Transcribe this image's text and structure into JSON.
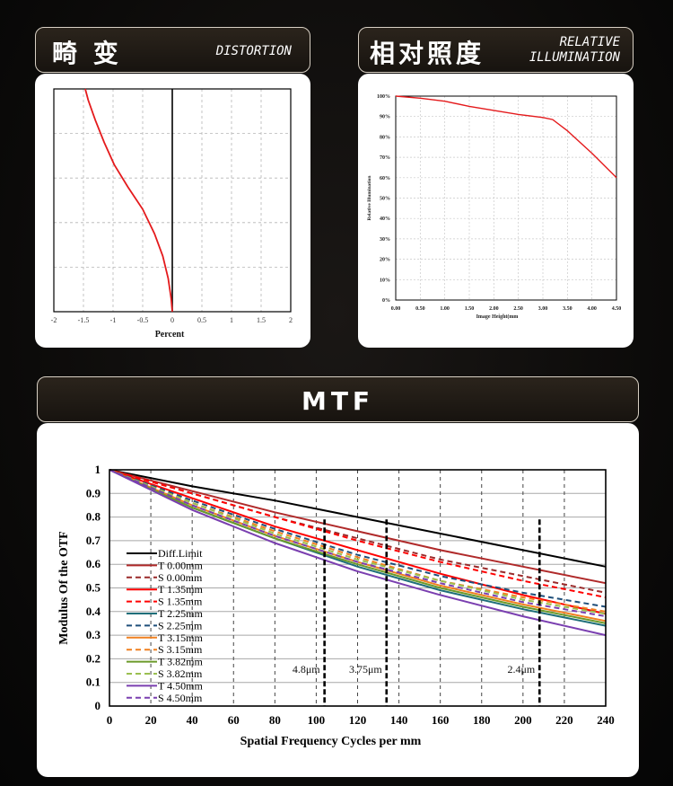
{
  "distortion": {
    "title_cn": "畸 变",
    "title_en": "DISTORTION",
    "chart_data": {
      "type": "line",
      "xlabel": "Percent",
      "xlim": [
        -2,
        2
      ],
      "x_ticks": [
        "-2",
        "-1.5",
        "-1",
        "-0.5",
        "0",
        "0.5",
        "1",
        "1.5",
        "2"
      ],
      "ylim": [
        0,
        1
      ],
      "grid": true,
      "series": [
        {
          "color": "#e41a1c",
          "points": [
            [
              0,
              0
            ],
            [
              -0.02,
              0.06
            ],
            [
              -0.07,
              0.15
            ],
            [
              -0.16,
              0.25
            ],
            [
              -0.3,
              0.35
            ],
            [
              -0.5,
              0.46
            ],
            [
              -0.75,
              0.56
            ],
            [
              -0.98,
              0.66
            ],
            [
              -1.15,
              0.76
            ],
            [
              -1.3,
              0.86
            ],
            [
              -1.42,
              0.95
            ],
            [
              -1.47,
              1.0
            ]
          ]
        }
      ]
    }
  },
  "illumination": {
    "title_cn": "相对照度",
    "title_en_1": "RELATIVE",
    "title_en_2": "ILLUMINATION",
    "chart_data": {
      "type": "line",
      "xlabel": "Image Height(mm",
      "ylabel": "Relative Illumination",
      "x_ticks": [
        "0.00",
        "0.50",
        "1.00",
        "1.50",
        "2.00",
        "2.50",
        "3.00",
        "3.50",
        "4.00",
        "4.50"
      ],
      "y_ticks": [
        "0%",
        "10%",
        "20%",
        "30%",
        "40%",
        "50%",
        "60%",
        "70%",
        "80%",
        "90%",
        "100%"
      ],
      "xlim": [
        0,
        4.5
      ],
      "ylim": [
        0,
        100
      ],
      "grid": true,
      "series": [
        {
          "color": "#e41a1c",
          "points": [
            [
              0,
              100
            ],
            [
              0.5,
              99
            ],
            [
              1.0,
              97.5
            ],
            [
              1.5,
              95
            ],
            [
              2.0,
              93
            ],
            [
              2.5,
              91
            ],
            [
              3.0,
              89.5
            ],
            [
              3.2,
              88.5
            ],
            [
              3.5,
              83
            ],
            [
              4.0,
              72
            ],
            [
              4.5,
              60
            ]
          ]
        }
      ]
    }
  },
  "mtf": {
    "title": "MTF",
    "chart_data": {
      "type": "line",
      "xlabel": "Spatial Frequency Cycles per mm",
      "ylabel": "Modulus Of the OTF",
      "xlim": [
        0,
        240
      ],
      "ylim": [
        0,
        1
      ],
      "x_ticks": [
        "0",
        "20",
        "40",
        "60",
        "80",
        "100",
        "120",
        "140",
        "160",
        "180",
        "200",
        "220",
        "240"
      ],
      "y_ticks": [
        "0",
        "0.1",
        "0.2",
        "0.3",
        "0.4",
        "0.5",
        "0.6",
        "0.7",
        "0.8",
        "0.9",
        "1"
      ],
      "grid": true,
      "legend_position": "bottom-left",
      "markers": [
        {
          "x": 104,
          "label": "4.8μm"
        },
        {
          "x": 134,
          "label": "3.75μm"
        },
        {
          "x": 208,
          "label": "2.4μm"
        }
      ],
      "series": [
        {
          "name": "Diff.Limit",
          "color": "#000000",
          "dash": false,
          "points": [
            [
              0,
              1
            ],
            [
              40,
              0.93
            ],
            [
              80,
              0.87
            ],
            [
              120,
              0.8
            ],
            [
              160,
              0.73
            ],
            [
              200,
              0.66
            ],
            [
              240,
              0.59
            ]
          ]
        },
        {
          "name": "T 0.00mm",
          "color": "#b02a2a",
          "dash": false,
          "points": [
            [
              0,
              1
            ],
            [
              40,
              0.91
            ],
            [
              80,
              0.82
            ],
            [
              120,
              0.74
            ],
            [
              160,
              0.66
            ],
            [
              200,
              0.59
            ],
            [
              240,
              0.52
            ]
          ]
        },
        {
          "name": "S 0.00mm",
          "color": "#9a2a2a",
          "dash": true,
          "points": [
            [
              0,
              1
            ],
            [
              40,
              0.9
            ],
            [
              80,
              0.8
            ],
            [
              120,
              0.71
            ],
            [
              160,
              0.62
            ],
            [
              200,
              0.55
            ],
            [
              240,
              0.48
            ]
          ]
        },
        {
          "name": "T 1.35mm",
          "color": "#ff0000",
          "dash": false,
          "points": [
            [
              0,
              1
            ],
            [
              40,
              0.88
            ],
            [
              80,
              0.76
            ],
            [
              120,
              0.66
            ],
            [
              160,
              0.56
            ],
            [
              200,
              0.47
            ],
            [
              240,
              0.39
            ]
          ]
        },
        {
          "name": "S 1.35mm",
          "color": "#ff0000",
          "dash": true,
          "points": [
            [
              0,
              1
            ],
            [
              40,
              0.9
            ],
            [
              80,
              0.8
            ],
            [
              120,
              0.7
            ],
            [
              160,
              0.61
            ],
            [
              200,
              0.53
            ],
            [
              240,
              0.46
            ]
          ]
        },
        {
          "name": "T 2.25mm",
          "color": "#1f6f7a",
          "dash": false,
          "points": [
            [
              0,
              1
            ],
            [
              40,
              0.84
            ],
            [
              80,
              0.71
            ],
            [
              120,
              0.59
            ],
            [
              160,
              0.49
            ],
            [
              200,
              0.41
            ],
            [
              240,
              0.34
            ]
          ]
        },
        {
          "name": "S 2.25mm",
          "color": "#1f4f7a",
          "dash": true,
          "points": [
            [
              0,
              1
            ],
            [
              40,
              0.87
            ],
            [
              80,
              0.75
            ],
            [
              120,
              0.64
            ],
            [
              160,
              0.55
            ],
            [
              200,
              0.48
            ],
            [
              240,
              0.42
            ]
          ]
        },
        {
          "name": "T 3.15mm",
          "color": "#f08020",
          "dash": false,
          "points": [
            [
              0,
              1
            ],
            [
              40,
              0.85
            ],
            [
              80,
              0.72
            ],
            [
              120,
              0.61
            ],
            [
              160,
              0.51
            ],
            [
              200,
              0.43
            ],
            [
              240,
              0.36
            ]
          ]
        },
        {
          "name": "S 3.15mm",
          "color": "#f08020",
          "dash": true,
          "points": [
            [
              0,
              1
            ],
            [
              40,
              0.86
            ],
            [
              80,
              0.74
            ],
            [
              120,
              0.63
            ],
            [
              160,
              0.53
            ],
            [
              200,
              0.46
            ],
            [
              240,
              0.4
            ]
          ]
        },
        {
          "name": "T 3.82mm",
          "color": "#6b9a2a",
          "dash": false,
          "points": [
            [
              0,
              1
            ],
            [
              40,
              0.84
            ],
            [
              80,
              0.71
            ],
            [
              120,
              0.6
            ],
            [
              160,
              0.5
            ],
            [
              200,
              0.42
            ],
            [
              240,
              0.35
            ]
          ]
        },
        {
          "name": "S 3.82mm",
          "color": "#9abf50",
          "dash": true,
          "points": [
            [
              0,
              1
            ],
            [
              40,
              0.86
            ],
            [
              80,
              0.73
            ],
            [
              120,
              0.62
            ],
            [
              160,
              0.53
            ],
            [
              200,
              0.45
            ],
            [
              240,
              0.39
            ]
          ]
        },
        {
          "name": "T 4.50mm",
          "color": "#7a3fb0",
          "dash": false,
          "points": [
            [
              0,
              1
            ],
            [
              40,
              0.83
            ],
            [
              80,
              0.69
            ],
            [
              120,
              0.57
            ],
            [
              160,
              0.47
            ],
            [
              200,
              0.38
            ],
            [
              240,
              0.3
            ]
          ]
        },
        {
          "name": "S 4.50mm",
          "color": "#7a3fb0",
          "dash": true,
          "points": [
            [
              0,
              1
            ],
            [
              40,
              0.85
            ],
            [
              80,
              0.72
            ],
            [
              120,
              0.61
            ],
            [
              160,
              0.52
            ],
            [
              200,
              0.44
            ],
            [
              240,
              0.38
            ]
          ]
        }
      ]
    }
  }
}
